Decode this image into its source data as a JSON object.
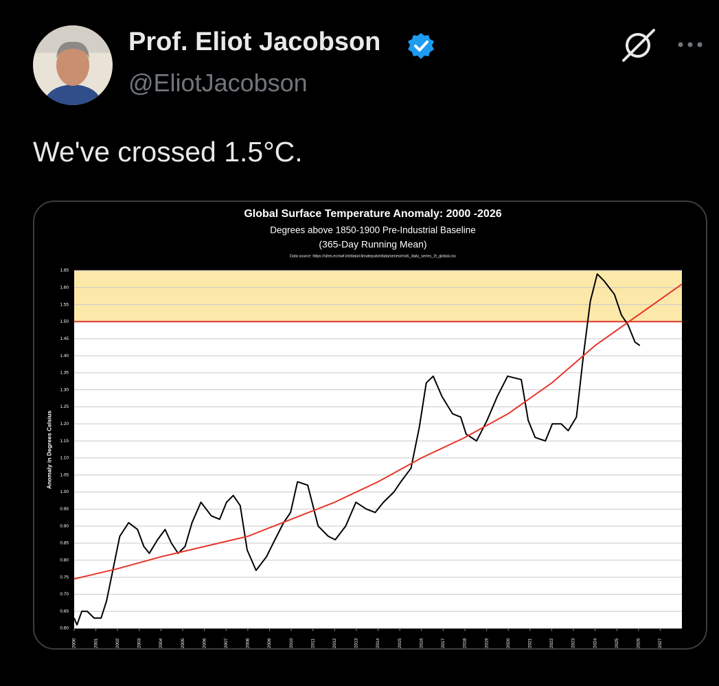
{
  "tweet": {
    "author_name": "Prof. Eliot Jacobson",
    "handle": "@EliotJacobson",
    "text": "We've crossed 1.5°C."
  },
  "chart_data": {
    "type": "line",
    "title": "Global Surface Temperature Anomaly: 2000 -2026",
    "subtitle": "Degrees above 1850-1900 Pre-Industrial Baseline",
    "subtitle_2": "(365-Day Running Mean)",
    "source": "Data source: https://sites.ecmwf.int/data/climatepulse/data/series/era5_daily_series_2t_global.csv",
    "y_label": "Anomaly in Degrees Celsius",
    "xlim": [
      2000,
      2028
    ],
    "xticks": [
      2000,
      2001,
      2002,
      2003,
      2004,
      2005,
      2006,
      2007,
      2008,
      2009,
      2010,
      2011,
      2012,
      2013,
      2014,
      2015,
      2016,
      2017,
      2018,
      2019,
      2020,
      2021,
      2022,
      2023,
      2024,
      2025,
      2026,
      2027
    ],
    "ylim": [
      0.6,
      1.65
    ],
    "yticks": [
      {
        "value": 0.6,
        "label": "0.60"
      },
      0.65,
      {
        "value": 0.7,
        "label": "0.70"
      },
      0.75,
      {
        "value": 0.8,
        "label": "0.80"
      },
      0.85,
      {
        "value": 0.9,
        "label": "0.90"
      },
      0.95,
      {
        "value": 1.0,
        "label": "1.00"
      },
      1.05,
      {
        "value": 1.1,
        "label": "1.10"
      },
      1.15,
      {
        "value": 1.2,
        "label": "1.20"
      },
      1.25,
      {
        "value": 1.3,
        "label": "1.30"
      },
      1.35,
      {
        "value": 1.4,
        "label": "1.40"
      },
      1.45,
      {
        "value": 1.5,
        "label": "1.50"
      },
      1.55,
      {
        "value": 1.6,
        "label": "1.60"
      },
      1.65
    ],
    "grid": true,
    "threshold": 1.5,
    "threshold_color": "#d9302a",
    "band": [
      1.5,
      1.65
    ],
    "band_color": "#fce8a8",
    "series": [
      {
        "color": "#000000",
        "x": [
          2000.0,
          2000.13,
          2000.35,
          2000.6,
          2000.92,
          2001.24,
          2001.49,
          2001.78,
          2002.1,
          2002.51,
          2002.92,
          2003.21,
          2003.46,
          2003.84,
          2004.19,
          2004.48,
          2004.79,
          2005.11,
          2005.43,
          2005.84,
          2006.32,
          2006.7,
          2007.02,
          2007.33,
          2007.65,
          2007.97,
          2008.38,
          2008.86,
          2009.17,
          2009.65,
          2009.97,
          2010.29,
          2010.76,
          2011.24,
          2011.71,
          2012.03,
          2012.51,
          2012.98,
          2013.46,
          2013.87,
          2014.25,
          2014.73,
          2015.05,
          2015.52,
          2015.9,
          2016.22,
          2016.54,
          2016.95,
          2017.43,
          2017.81,
          2018.06,
          2018.54,
          2019.02,
          2019.49,
          2019.97,
          2020.6,
          2020.92,
          2021.24,
          2021.71,
          2022.03,
          2022.44,
          2022.76,
          2023.14,
          2023.46,
          2023.78,
          2024.1,
          2024.41,
          2024.89,
          2025.21,
          2025.52,
          2025.84,
          2026.06
        ],
        "values": [
          0.63,
          0.61,
          0.65,
          0.65,
          0.63,
          0.63,
          0.68,
          0.77,
          0.87,
          0.91,
          0.89,
          0.84,
          0.82,
          0.86,
          0.89,
          0.85,
          0.82,
          0.84,
          0.91,
          0.97,
          0.93,
          0.92,
          0.97,
          0.99,
          0.96,
          0.83,
          0.77,
          0.81,
          0.85,
          0.91,
          0.94,
          1.03,
          1.02,
          0.9,
          0.87,
          0.86,
          0.9,
          0.97,
          0.95,
          0.94,
          0.97,
          1.0,
          1.03,
          1.07,
          1.19,
          1.32,
          1.34,
          1.28,
          1.23,
          1.22,
          1.17,
          1.15,
          1.21,
          1.28,
          1.34,
          1.33,
          1.21,
          1.16,
          1.15,
          1.2,
          1.2,
          1.18,
          1.22,
          1.4,
          1.56,
          1.64,
          1.62,
          1.58,
          1.52,
          1.49,
          1.44,
          1.43
        ]
      },
      {
        "color": "#e8342a",
        "x": [
          2000,
          2002,
          2004,
          2006,
          2008,
          2010,
          2012,
          2014,
          2016,
          2018,
          2020,
          2022,
          2024,
          2026,
          2028
        ],
        "values": [
          0.745,
          0.775,
          0.81,
          0.84,
          0.87,
          0.92,
          0.97,
          1.03,
          1.1,
          1.16,
          1.23,
          1.32,
          1.43,
          1.52,
          1.61
        ]
      }
    ]
  }
}
